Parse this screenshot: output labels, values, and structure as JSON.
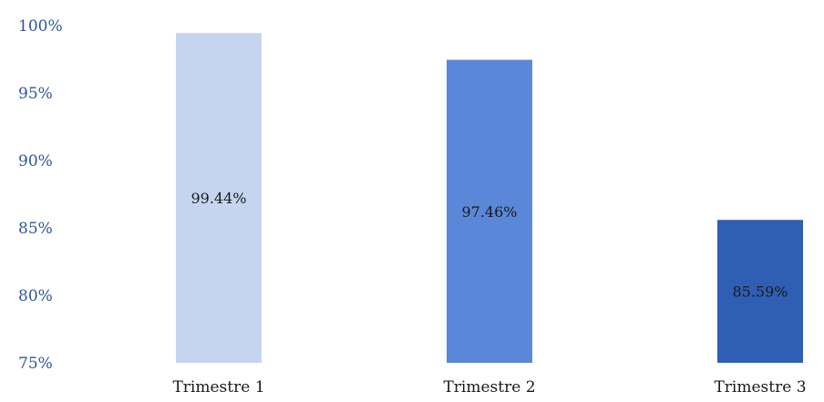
{
  "chart_data": {
    "type": "bar",
    "title": "",
    "xlabel": "",
    "ylabel": "",
    "categories": [
      "Trimestre 1",
      "Trimestre 2",
      "Trimestre 3"
    ],
    "values": [
      99.44,
      97.46,
      85.59
    ],
    "value_labels": [
      "99.44%",
      "97.46%",
      "85.59%"
    ],
    "colors": [
      "#c5d5ef",
      "#5b87d8",
      "#2f5eb5"
    ],
    "ylim": [
      75,
      100
    ],
    "yticks": [
      75,
      80,
      85,
      90,
      95,
      100
    ],
    "ytick_labels": [
      "75%",
      "80%",
      "85%",
      "90%",
      "95%",
      "100%"
    ],
    "grid": false,
    "legend": "none"
  }
}
